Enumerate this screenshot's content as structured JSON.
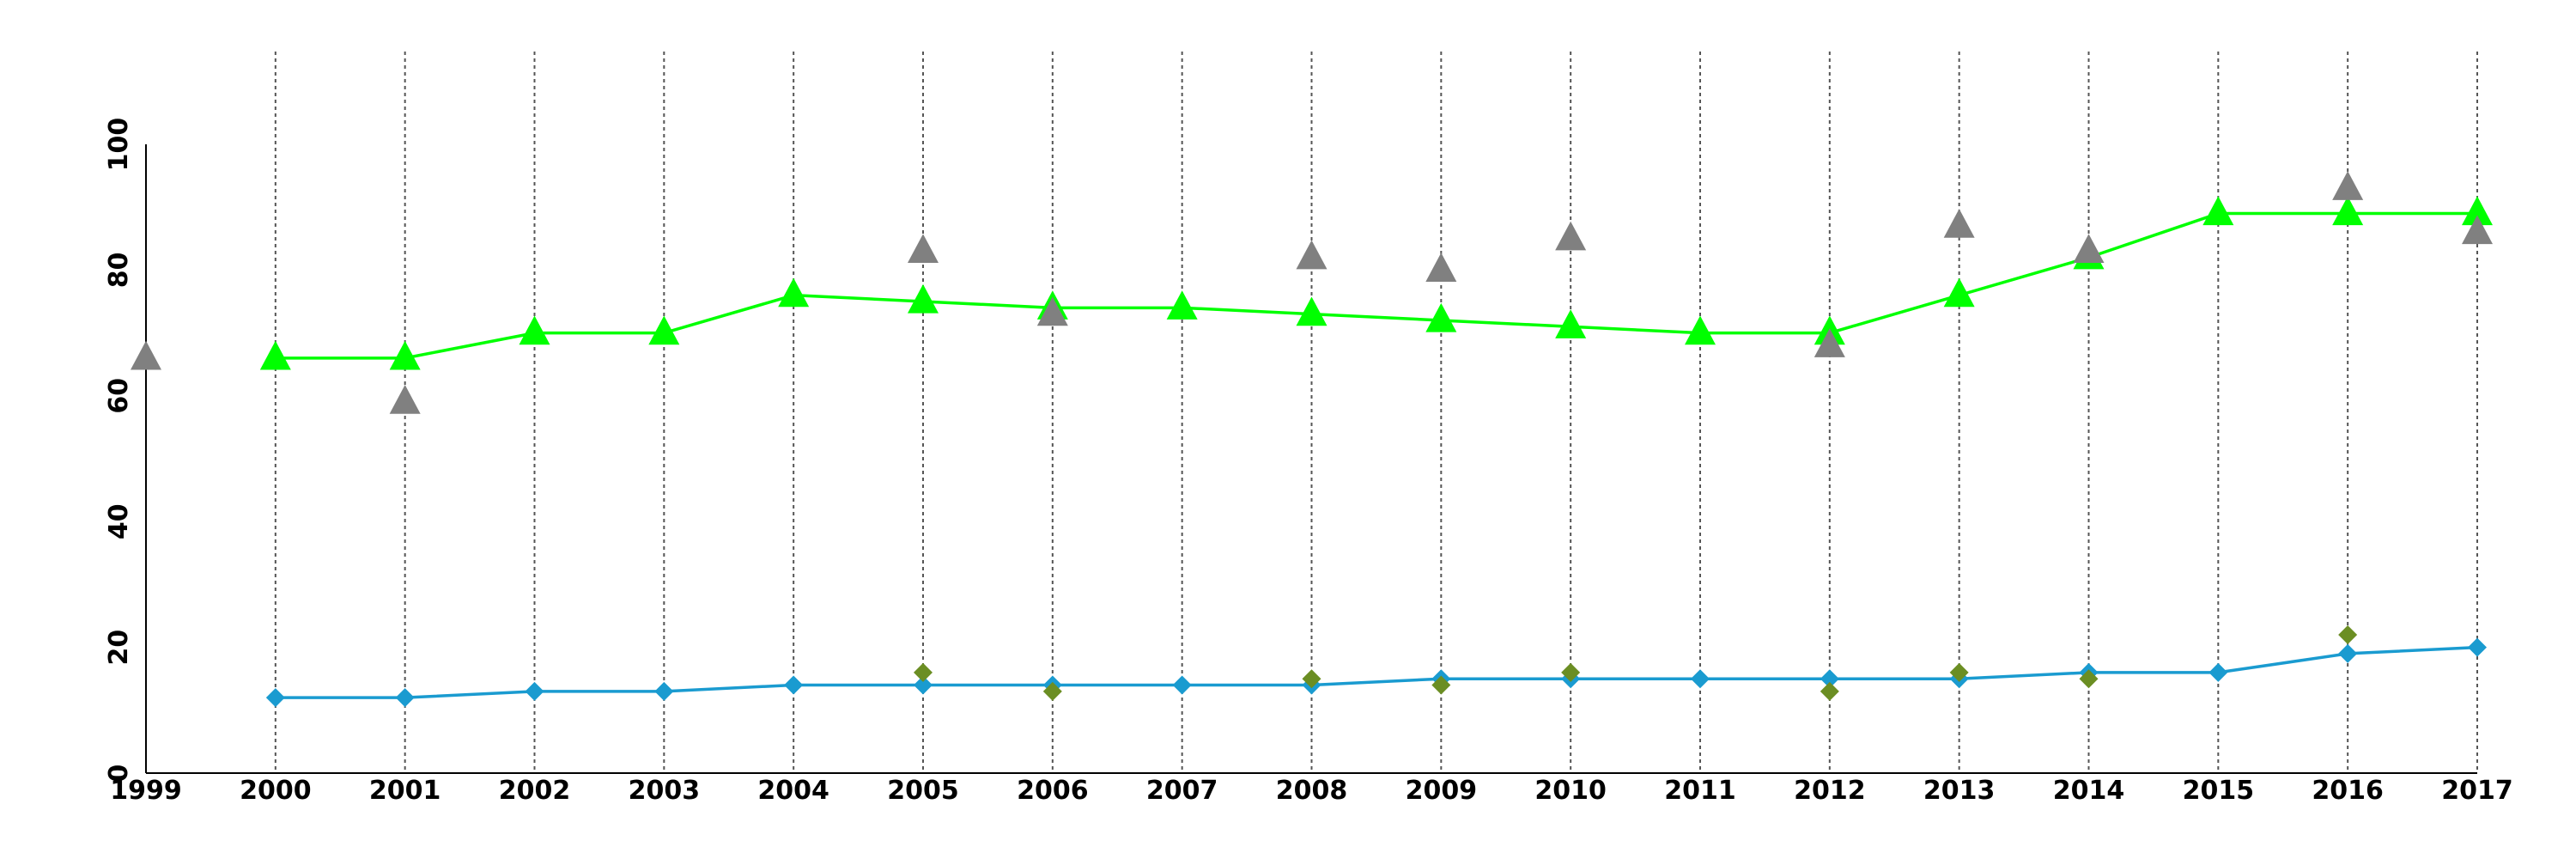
{
  "chart_data": {
    "type": "line",
    "title": "",
    "xlabel": "",
    "ylabel": "",
    "x": [
      1999,
      2000,
      2001,
      2002,
      2003,
      2004,
      2005,
      2006,
      2007,
      2008,
      2009,
      2010,
      2011,
      2012,
      2013,
      2014,
      2015,
      2016,
      2017
    ],
    "xlim": [
      1999,
      2017
    ],
    "ylim": [
      0,
      100
    ],
    "y_ticks": [
      0,
      20,
      40,
      60,
      80,
      100
    ],
    "vertical_grid": true,
    "legend": "none",
    "series": [
      {
        "kind": "line",
        "marker": "triangle",
        "color": "#00ff00",
        "points": [
          [
            2000,
            66
          ],
          [
            2001,
            66
          ],
          [
            2002,
            70
          ],
          [
            2003,
            70
          ],
          [
            2004,
            76
          ],
          [
            2005,
            75
          ],
          [
            2006,
            74
          ],
          [
            2007,
            74
          ],
          [
            2008,
            73
          ],
          [
            2009,
            72
          ],
          [
            2010,
            71
          ],
          [
            2011,
            70
          ],
          [
            2012,
            70
          ],
          [
            2013,
            76
          ],
          [
            2014,
            82
          ],
          [
            2015,
            89
          ],
          [
            2016,
            89
          ],
          [
            2017,
            89
          ]
        ]
      },
      {
        "kind": "scatter",
        "marker": "triangle",
        "color": "#808080",
        "points": [
          [
            1999,
            66
          ],
          [
            2001,
            59
          ],
          [
            2005,
            83
          ],
          [
            2006,
            73
          ],
          [
            2008,
            82
          ],
          [
            2009,
            80
          ],
          [
            2010,
            85
          ],
          [
            2012,
            68
          ],
          [
            2013,
            87
          ],
          [
            2014,
            83
          ],
          [
            2016,
            93
          ],
          [
            2017,
            86
          ]
        ]
      },
      {
        "kind": "line",
        "marker": "diamond",
        "color": "#1a9bd0",
        "points": [
          [
            2000,
            12
          ],
          [
            2001,
            12
          ],
          [
            2002,
            13
          ],
          [
            2003,
            13
          ],
          [
            2004,
            14
          ],
          [
            2005,
            14
          ],
          [
            2006,
            14
          ],
          [
            2007,
            14
          ],
          [
            2008,
            14
          ],
          [
            2009,
            15
          ],
          [
            2010,
            15
          ],
          [
            2011,
            15
          ],
          [
            2012,
            15
          ],
          [
            2013,
            15
          ],
          [
            2014,
            16
          ],
          [
            2015,
            16
          ],
          [
            2016,
            19
          ],
          [
            2017,
            20
          ]
        ]
      },
      {
        "kind": "scatter",
        "marker": "diamond",
        "color": "#6b8e23",
        "points": [
          [
            2005,
            16
          ],
          [
            2006,
            13
          ],
          [
            2008,
            15
          ],
          [
            2009,
            14
          ],
          [
            2010,
            16
          ],
          [
            2012,
            13
          ],
          [
            2013,
            16
          ],
          [
            2014,
            15
          ],
          [
            2016,
            22
          ]
        ]
      }
    ]
  }
}
